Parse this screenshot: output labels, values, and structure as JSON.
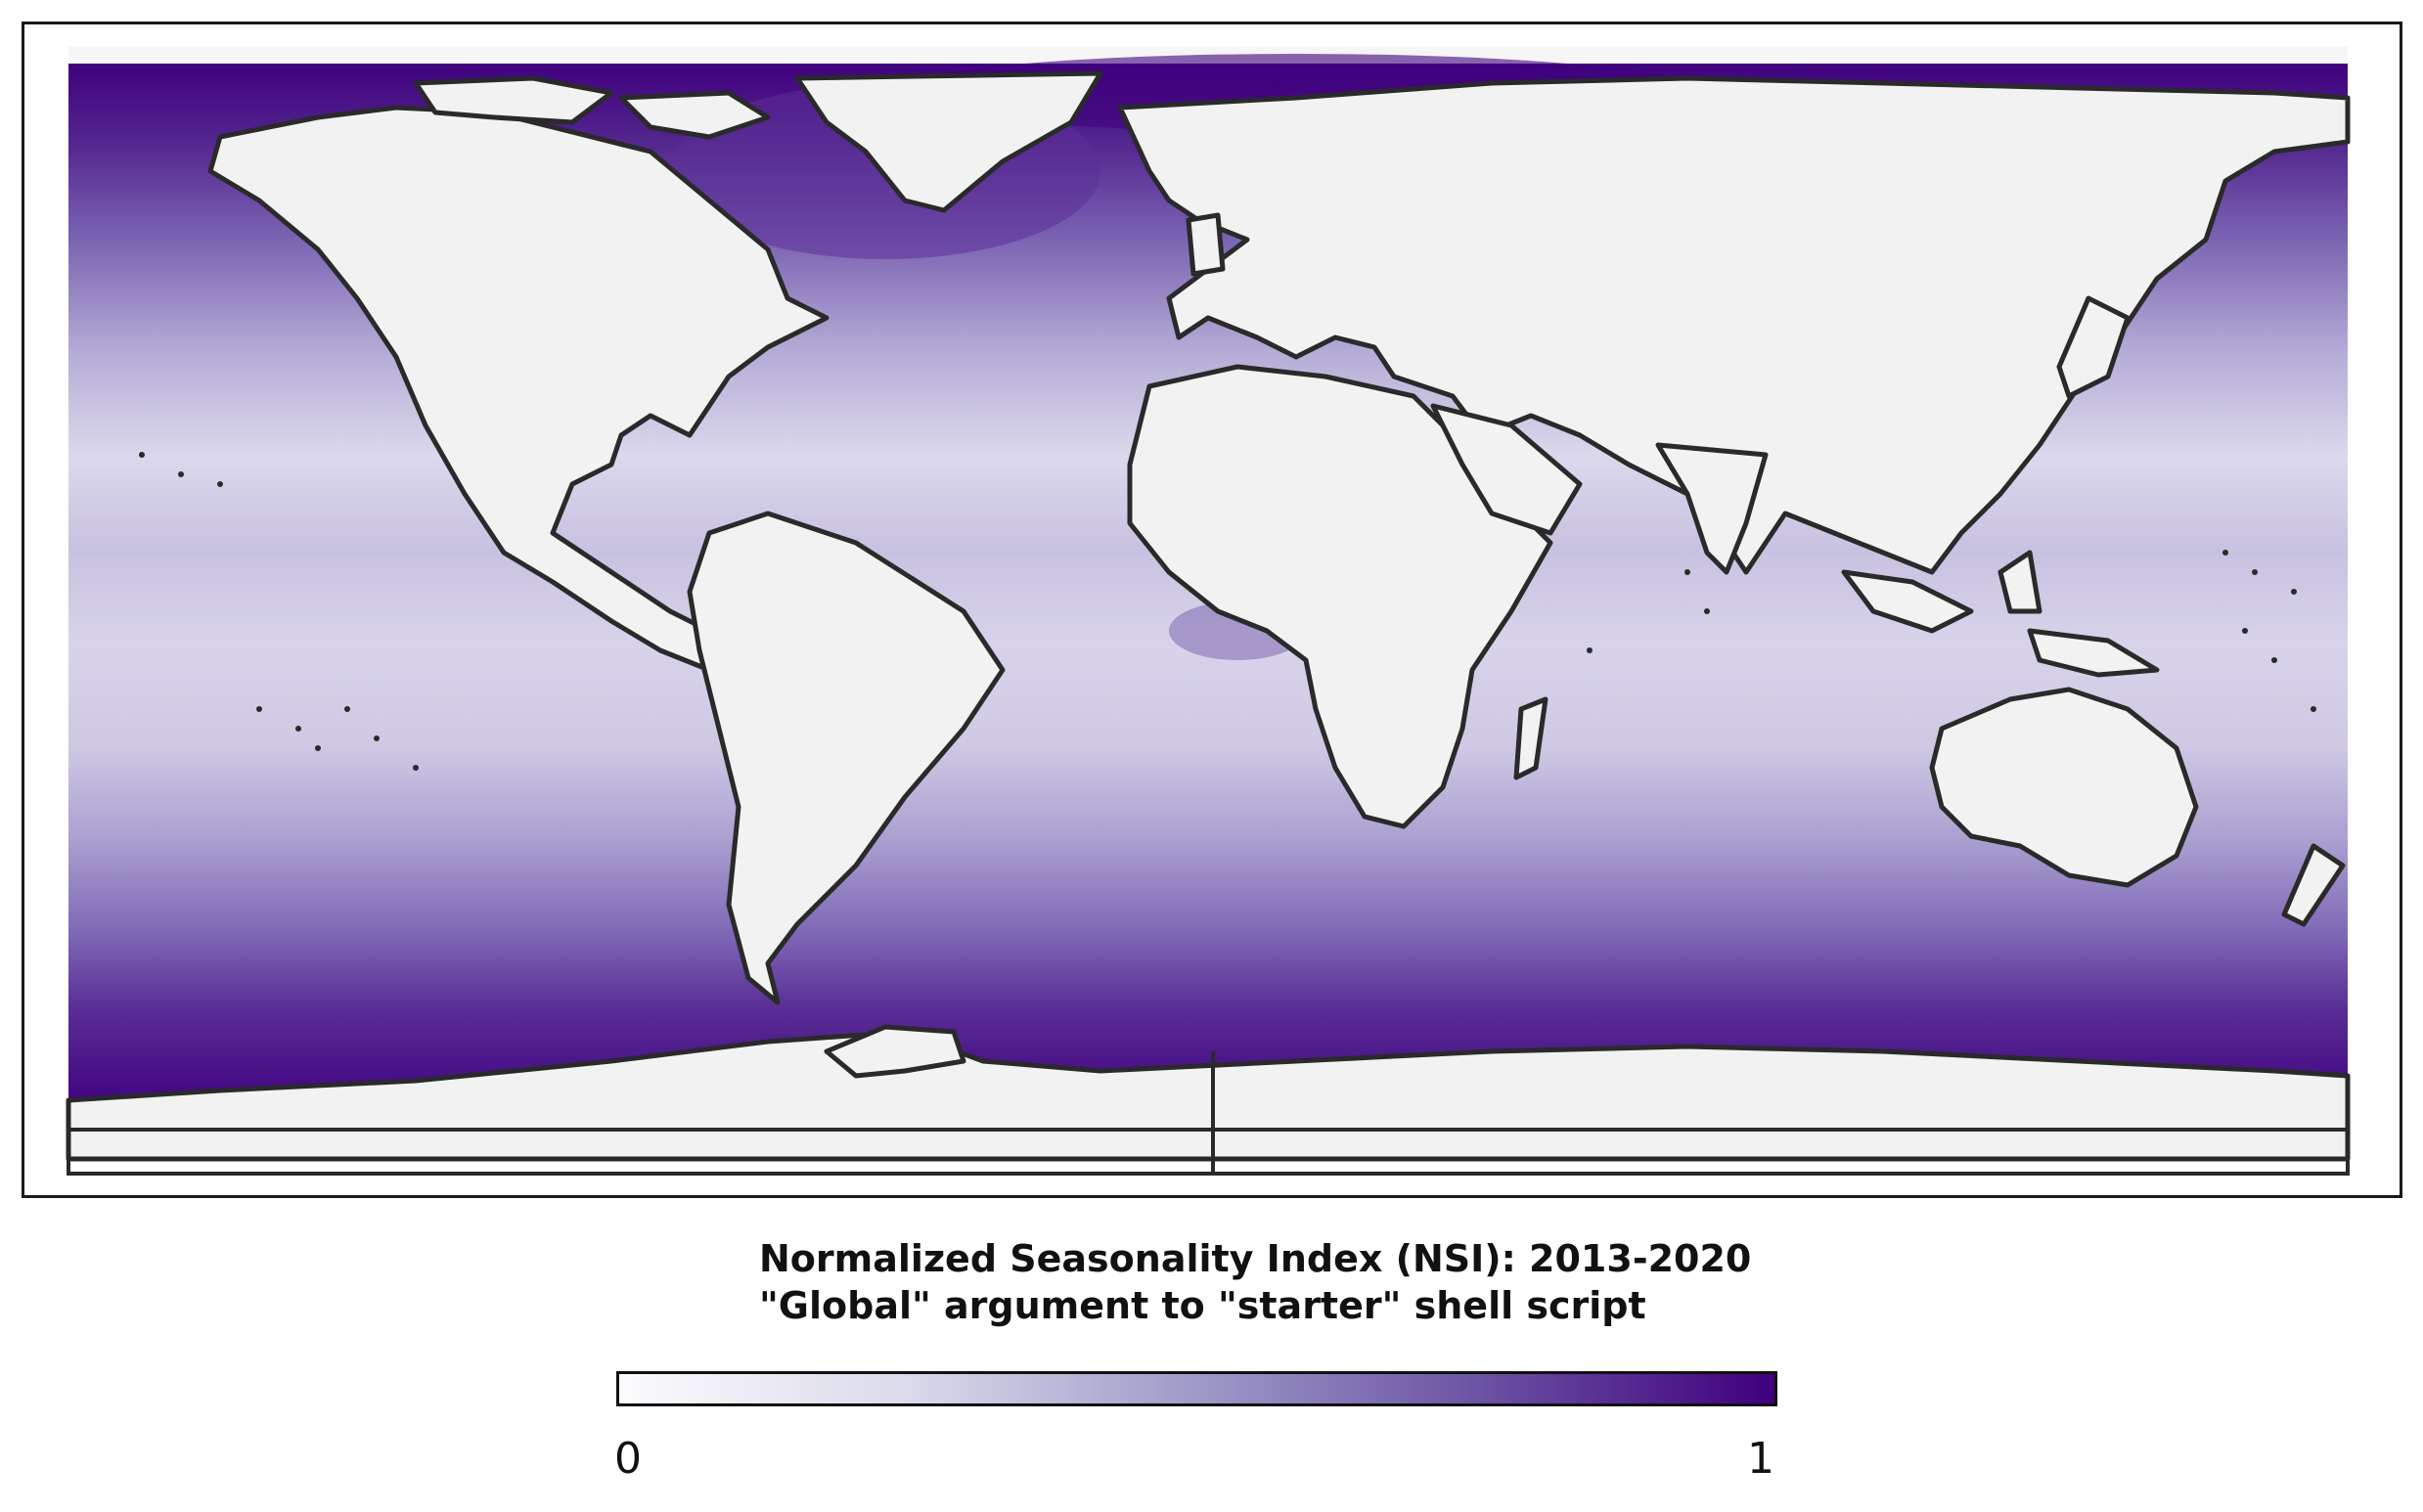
{
  "title_line1": "Normalized Seasonality Index (NSI): 2013-2020",
  "title_line2": "\"Global\" argument to \"starter\" shell script",
  "colorbar": {
    "min_label": "0",
    "max_label": "1",
    "colors": [
      "#fcfbfd",
      "#dadaeb",
      "#9e9ac8",
      "#6a51a3",
      "#3f007d"
    ]
  },
  "map": {
    "projection": "equirectangular",
    "variable": "NSI",
    "land_color": "#f2f2f2",
    "coastline_color": "#2a2a2a",
    "extent": "global"
  }
}
